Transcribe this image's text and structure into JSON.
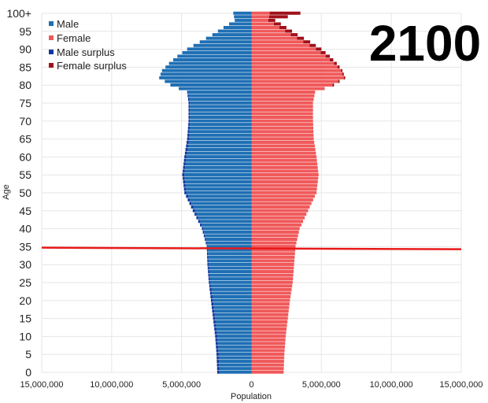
{
  "chart_data": {
    "type": "bar",
    "orientation": "horizontal-population-pyramid",
    "year": "2100",
    "ylabel": "Age",
    "xlabel": "Population",
    "xlim": [
      -15000000,
      15000000
    ],
    "x_ticks": [
      {
        "value": -15000000,
        "label": "15,000,000"
      },
      {
        "value": -10000000,
        "label": "10,000,000"
      },
      {
        "value": -5000000,
        "label": "5,000,000"
      },
      {
        "value": 0,
        "label": "0"
      },
      {
        "value": 5000000,
        "label": "5,000,000"
      },
      {
        "value": 10000000,
        "label": "10,000,000"
      },
      {
        "value": 15000000,
        "label": "15,000,000"
      }
    ],
    "y_ticks": [
      "0",
      "5",
      "10",
      "15",
      "20",
      "25",
      "30",
      "35",
      "40",
      "45",
      "50",
      "55",
      "60",
      "65",
      "70",
      "75",
      "80",
      "85",
      "90",
      "95",
      "100+"
    ],
    "grid": true,
    "legend_position": "top-left",
    "legend": [
      {
        "label": "Male",
        "color": "#1f6fb4"
      },
      {
        "label": "Female",
        "color": "#f0595a"
      },
      {
        "label": "Male surplus",
        "color": "#1036a0"
      },
      {
        "label": "Female surplus",
        "color": "#a0101a"
      }
    ],
    "marker_line_age": 34.5,
    "marker_line_color": "#e81a1a",
    "ages": [
      0,
      5,
      10,
      15,
      20,
      25,
      30,
      35,
      40,
      45,
      50,
      55,
      60,
      65,
      70,
      75,
      78,
      80,
      82,
      84,
      86,
      88,
      90,
      92,
      94,
      96,
      98,
      100
    ],
    "male": [
      2450000,
      2500000,
      2600000,
      2750000,
      2900000,
      3050000,
      3150000,
      3200000,
      3550000,
      4200000,
      4800000,
      4950000,
      4800000,
      4600000,
      4500000,
      4500000,
      4600000,
      5800000,
      6600000,
      6400000,
      5900000,
      5300000,
      4600000,
      3700000,
      2800000,
      2000000,
      1200000,
      1300000
    ],
    "female": [
      2300000,
      2350000,
      2450000,
      2600000,
      2750000,
      2950000,
      3050000,
      3150000,
      3450000,
      4050000,
      4650000,
      4800000,
      4650000,
      4450000,
      4400000,
      4400000,
      4550000,
      5900000,
      6700000,
      6500000,
      6100000,
      5600000,
      5000000,
      4200000,
      3300000,
      2500000,
      1700000,
      3500000
    ]
  }
}
